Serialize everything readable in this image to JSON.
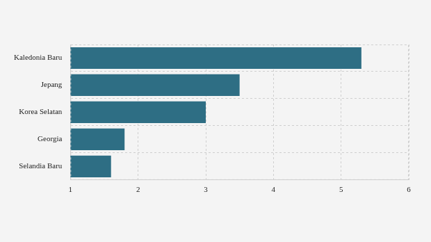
{
  "chart_data": {
    "type": "bar",
    "orientation": "horizontal",
    "categories": [
      "Kaledonia Baru",
      "Jepang",
      "Korea Selatan",
      "Georgia",
      "Selandia Baru"
    ],
    "values": [
      5.3,
      3.5,
      3.0,
      1.8,
      1.6
    ],
    "color": "#2e6e84",
    "xlim": [
      1,
      6
    ],
    "xticks": [
      1,
      2,
      3,
      4,
      5,
      6
    ],
    "grid": true
  }
}
